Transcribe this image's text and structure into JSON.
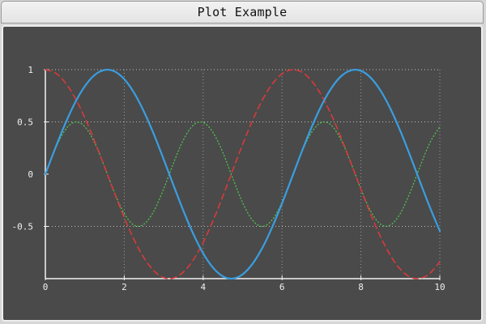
{
  "window": {
    "title": "Plot Example"
  },
  "chart_data": {
    "type": "line",
    "title": "",
    "xlabel": "",
    "ylabel": "",
    "xlim": [
      0,
      10
    ],
    "ylim": [
      -1,
      1
    ],
    "x_ticks": [
      "0",
      "2",
      "4",
      "6",
      "8",
      "10"
    ],
    "y_ticks": [
      "1",
      "0.5",
      "0",
      "-0.5"
    ],
    "grid": true,
    "legend": "none",
    "series": [
      {
        "color": "#3a9ee0",
        "style": "solid",
        "x": [
          0,
          0.25,
          0.5,
          0.75,
          1,
          1.25,
          1.5,
          1.75,
          2,
          2.25,
          2.5,
          2.75,
          3,
          3.25,
          3.5,
          3.75,
          4,
          4.25,
          4.5,
          4.75,
          5,
          5.25,
          5.5,
          5.75,
          6,
          6.25,
          6.5,
          6.75,
          7,
          7.25,
          7.5,
          7.75,
          8,
          8.25,
          8.5,
          8.75,
          9,
          9.25,
          9.5,
          9.75,
          10
        ],
        "values": [
          0,
          0.247,
          0.479,
          0.682,
          0.841,
          0.949,
          0.997,
          0.984,
          0.909,
          0.778,
          0.598,
          0.382,
          0.141,
          -0.108,
          -0.351,
          -0.572,
          -0.757,
          -0.895,
          -0.978,
          -0.999,
          -0.959,
          -0.859,
          -0.706,
          -0.508,
          -0.279,
          -0.033,
          0.215,
          0.45,
          0.657,
          0.823,
          0.938,
          0.994,
          0.989,
          0.922,
          0.798,
          0.624,
          0.412,
          0.174,
          -0.075,
          -0.319,
          -0.544
        ]
      },
      {
        "color": "#d93a3a",
        "style": "dashed",
        "x": [
          0,
          0.25,
          0.5,
          0.75,
          1,
          1.25,
          1.5,
          1.75,
          2,
          2.25,
          2.5,
          2.75,
          3,
          3.25,
          3.5,
          3.75,
          4,
          4.25,
          4.5,
          4.75,
          5,
          5.25,
          5.5,
          5.75,
          6,
          6.25,
          6.5,
          6.75,
          7,
          7.25,
          7.5,
          7.75,
          8,
          8.25,
          8.5,
          8.75,
          9,
          9.25,
          9.5,
          9.75,
          10
        ],
        "values": [
          1,
          0.969,
          0.878,
          0.732,
          0.54,
          0.315,
          0.071,
          -0.178,
          -0.416,
          -0.628,
          -0.801,
          -0.924,
          -0.99,
          -0.994,
          -0.936,
          -0.82,
          -0.654,
          -0.446,
          -0.211,
          0.038,
          0.284,
          0.512,
          0.709,
          0.862,
          0.96,
          0.999,
          0.977,
          0.893,
          0.754,
          0.568,
          0.347,
          0.105,
          -0.146,
          -0.386,
          -0.602,
          -0.78,
          -0.911,
          -0.985,
          -0.997,
          -0.948,
          -0.839
        ]
      },
      {
        "color": "#4fc24f",
        "style": "dotted",
        "x": [
          0,
          0.25,
          0.5,
          0.75,
          1,
          1.25,
          1.5,
          1.75,
          2,
          2.25,
          2.5,
          2.75,
          3,
          3.25,
          3.5,
          3.75,
          4,
          4.25,
          4.5,
          4.75,
          5,
          5.25,
          5.5,
          5.75,
          6,
          6.25,
          6.5,
          6.75,
          7,
          7.25,
          7.5,
          7.75,
          8,
          8.25,
          8.5,
          8.75,
          9,
          9.25,
          9.5,
          9.75,
          10
        ],
        "values": [
          0,
          0.24,
          0.421,
          0.499,
          0.455,
          0.299,
          0.071,
          -0.175,
          -0.378,
          -0.489,
          -0.479,
          -0.353,
          -0.14,
          0.107,
          0.329,
          0.469,
          0.495,
          0.399,
          0.206,
          -0.038,
          -0.272,
          -0.44,
          -0.5,
          -0.438,
          -0.268,
          -0.033,
          0.21,
          0.401,
          0.495,
          0.468,
          0.325,
          0.104,
          -0.144,
          -0.356,
          -0.48,
          -0.487,
          -0.375,
          -0.171,
          0.075,
          0.302,
          0.456
        ]
      }
    ]
  }
}
